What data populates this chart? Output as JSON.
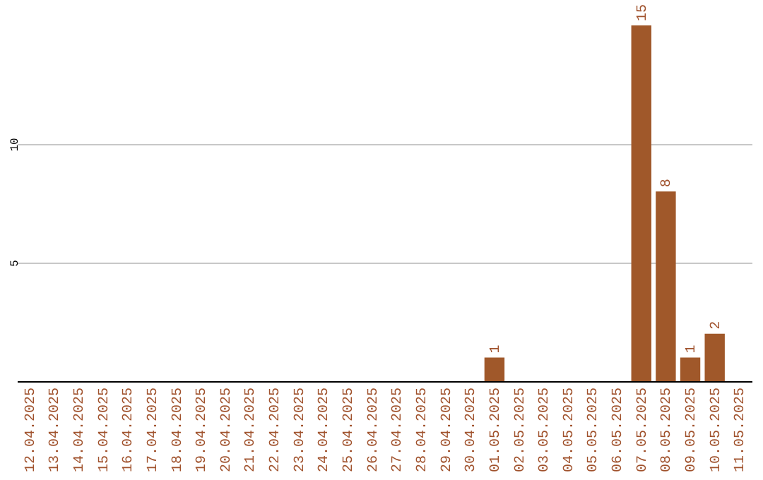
{
  "chart_data": {
    "type": "bar",
    "categories": [
      "12.04.2025",
      "13.04.2025",
      "14.04.2025",
      "15.04.2025",
      "16.04.2025",
      "17.04.2025",
      "18.04.2025",
      "19.04.2025",
      "20.04.2025",
      "21.04.2025",
      "22.04.2025",
      "23.04.2025",
      "24.04.2025",
      "25.04.2025",
      "26.04.2025",
      "27.04.2025",
      "28.04.2025",
      "29.04.2025",
      "30.04.2025",
      "01.05.2025",
      "02.05.2025",
      "03.05.2025",
      "04.05.2025",
      "05.05.2025",
      "06.05.2025",
      "07.05.2025",
      "08.05.2025",
      "09.05.2025",
      "10.05.2025",
      "11.05.2025"
    ],
    "values": [
      0,
      0,
      0,
      0,
      0,
      0,
      0,
      0,
      0,
      0,
      0,
      0,
      0,
      0,
      0,
      0,
      0,
      0,
      0,
      1,
      0,
      0,
      0,
      0,
      0,
      15,
      8,
      1,
      2,
      0
    ],
    "value_labels": [
      null,
      null,
      null,
      null,
      null,
      null,
      null,
      null,
      null,
      null,
      null,
      null,
      null,
      null,
      null,
      null,
      null,
      null,
      null,
      "1",
      null,
      null,
      null,
      null,
      null,
      "15",
      "8",
      "1",
      "2",
      null
    ],
    "color": "#a0582a",
    "ylim": [
      0,
      15
    ],
    "yticks": [
      5,
      10
    ],
    "grid": "y"
  }
}
